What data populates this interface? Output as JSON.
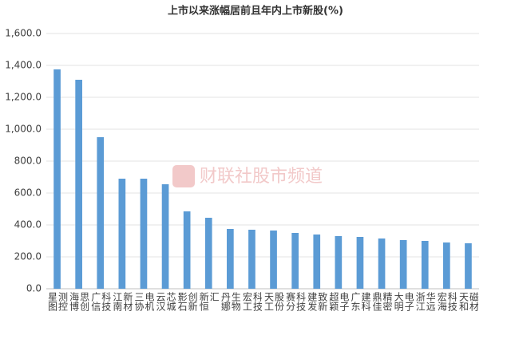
{
  "chart_data": {
    "type": "bar",
    "title": "上市以来涨幅居前且年内上市新股(%)",
    "watermark": "财联社股市频道",
    "categories": [
      "星图测控",
      "海博思创",
      "广信科技",
      "江南新材",
      "三协电机",
      "云汉芯城",
      "影石创新",
      "新恒汇",
      "丹娜生物",
      "宏工科技",
      "天工股份",
      "赛分科技",
      "建发致新",
      "超颖电子",
      "广东建科",
      "鼎佳精密",
      "大明电子",
      "浙江华远",
      "宏海科技",
      "天和磁材"
    ],
    "values": [
      1375,
      1310,
      950,
      690,
      690,
      655,
      485,
      445,
      375,
      370,
      365,
      350,
      340,
      330,
      325,
      315,
      305,
      300,
      290,
      285
    ],
    "color": "#5b9bd5",
    "ylim": [
      0,
      1600
    ],
    "yticks": [
      {
        "value": 0,
        "label": "0.0"
      },
      {
        "value": 200,
        "label": "200.0"
      },
      {
        "value": 400,
        "label": "400.0"
      },
      {
        "value": 600,
        "label": "600.0"
      },
      {
        "value": 800,
        "label": "800.0"
      },
      {
        "value": 1000,
        "label": "1,000.0"
      },
      {
        "value": 1200,
        "label": "1,200.0"
      },
      {
        "value": 1400,
        "label": "1,400.0"
      },
      {
        "value": 1600,
        "label": "1,600.0"
      }
    ],
    "grid": true
  }
}
